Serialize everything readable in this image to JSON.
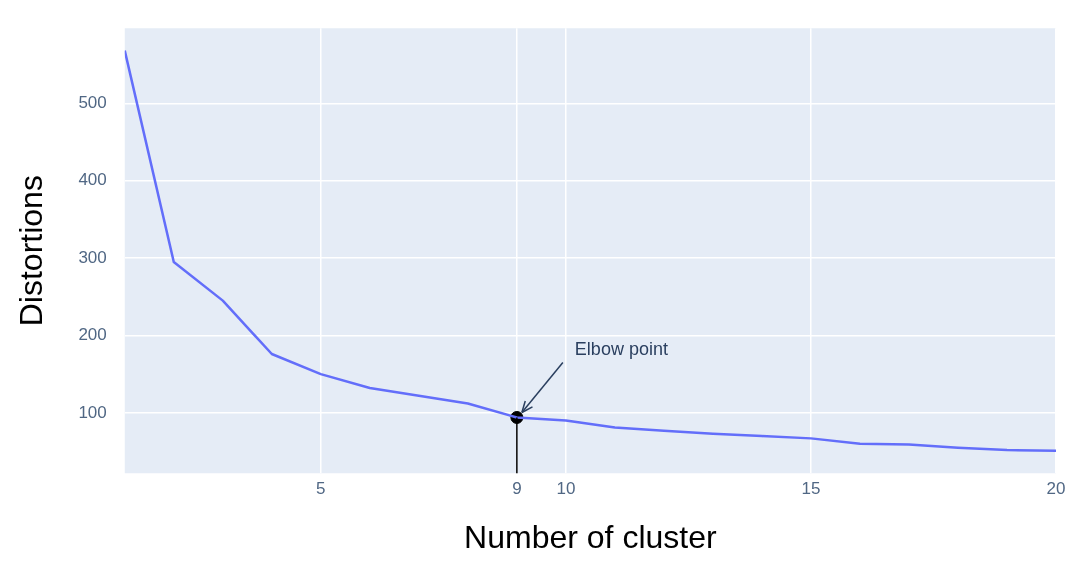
{
  "chart_data": {
    "type": "line",
    "xlabel": "Number of cluster",
    "ylabel": "Distortions",
    "x": [
      1,
      2,
      3,
      4,
      5,
      6,
      7,
      8,
      9,
      10,
      11,
      12,
      13,
      14,
      15,
      16,
      17,
      18,
      19,
      20
    ],
    "series": [
      {
        "color": "#636efa",
        "marker": "none",
        "values": [
          568,
          295,
          245,
          176,
          150,
          132,
          122,
          112,
          94,
          90,
          81,
          77,
          73,
          70,
          67,
          60,
          59,
          55,
          52,
          51
        ]
      },
      {
        "type": "lollipop",
        "color": "#000000",
        "marker": "circle",
        "x": [
          9
        ],
        "values": [
          94
        ]
      }
    ],
    "xlim": [
      1,
      20
    ],
    "ylim": [
      22,
      597
    ],
    "xticks": [
      5,
      9,
      10,
      15,
      20
    ],
    "yticks": [
      100,
      200,
      300,
      400,
      500
    ],
    "grid": true,
    "annotations": [
      {
        "text": "Elbow point",
        "x": 9,
        "y": 94
      }
    ]
  }
}
